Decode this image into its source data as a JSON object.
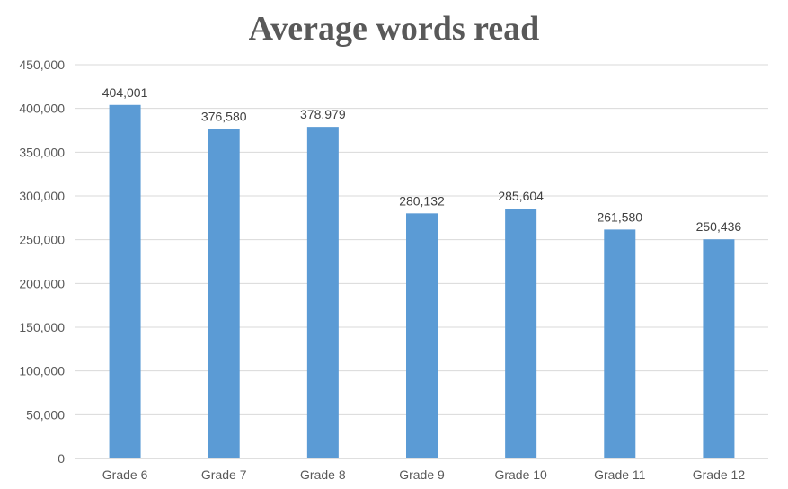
{
  "chart_data": {
    "type": "bar",
    "title": "Average words read",
    "xlabel": "",
    "ylabel": "",
    "categories": [
      "Grade 6",
      "Grade 7",
      "Grade 8",
      "Grade 9",
      "Grade 10",
      "Grade 11",
      "Grade 12"
    ],
    "values": [
      404001,
      376580,
      378979,
      280132,
      285604,
      261580,
      250436
    ],
    "data_labels": [
      "404,001",
      "376,580",
      "378,979",
      "280,132",
      "285,604",
      "261,580",
      "250,436"
    ],
    "ylim": [
      0,
      450000
    ],
    "yticks": [
      0,
      50000,
      100000,
      150000,
      200000,
      250000,
      300000,
      350000,
      400000,
      450000
    ],
    "ytick_labels": [
      "0",
      "50,000",
      "100,000",
      "150,000",
      "200,000",
      "250,000",
      "300,000",
      "350,000",
      "400,000",
      "450,000"
    ],
    "grid": true,
    "legend": "none",
    "bar_color": "#5b9bd5",
    "grid_color": "#d9d9d9",
    "axis_color": "#bfbfbf"
  }
}
